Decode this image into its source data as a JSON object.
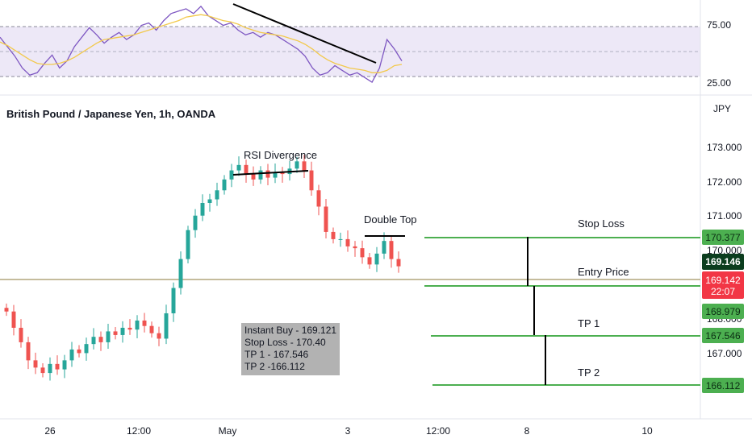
{
  "chart_data": [
    {
      "type": "line",
      "title": "",
      "yticks": [
        "75.00",
        "25.00"
      ],
      "ylim": [
        18,
        88
      ],
      "band": [
        30,
        70
      ],
      "series": [
        {
          "color": "#7e57c2",
          "values": [
            60,
            52,
            44,
            34,
            28,
            30,
            38,
            45,
            34,
            40,
            52,
            60,
            68,
            62,
            55,
            60,
            64,
            58,
            62,
            70,
            72,
            66,
            74,
            80,
            82,
            84,
            80,
            86,
            78,
            74,
            70,
            72,
            66,
            62,
            64,
            60,
            64,
            62,
            58,
            54,
            50,
            44,
            34,
            28,
            30,
            36,
            32,
            28,
            30,
            26,
            22,
            34,
            58,
            50,
            40
          ]
        },
        {
          "color": "#f2c94c",
          "values": [
            56,
            53,
            49,
            45,
            41,
            38,
            37,
            37,
            38,
            40,
            43,
            47,
            51,
            55,
            58,
            59,
            60,
            61,
            62,
            64,
            66,
            68,
            70,
            72,
            74,
            77,
            78,
            79,
            78,
            76,
            74,
            73,
            71,
            68,
            66,
            64,
            63,
            62,
            61,
            59,
            57,
            54,
            50,
            45,
            41,
            38,
            36,
            34,
            33,
            32,
            30,
            30,
            32,
            36,
            37
          ]
        }
      ]
    },
    {
      "type": "line",
      "title": "British Pound / Japanese Yen, 1h, OANDA",
      "currency": "JPY",
      "ylim": [
        165.25,
        173.8
      ],
      "yticks": [
        "173.000",
        "172.000",
        "171.000",
        "170.000",
        "168.000",
        "167.000"
      ],
      "xticks": [
        "26",
        "12:00",
        "May",
        "3",
        "12:00",
        "8",
        "10"
      ],
      "close": [
        167.95,
        167.5,
        167.1,
        166.6,
        166.4,
        166.25,
        166.5,
        166.35,
        166.6,
        166.9,
        166.8,
        167.05,
        167.25,
        167.1,
        167.4,
        167.3,
        167.5,
        167.45,
        167.7,
        167.55,
        167.35,
        167.2,
        167.9,
        168.6,
        169.4,
        170.2,
        170.6,
        170.95,
        171.05,
        171.3,
        171.6,
        171.85,
        172.0,
        171.75,
        171.6,
        171.85,
        171.65,
        171.8,
        171.75,
        171.9,
        172.1,
        171.85,
        171.3,
        170.85,
        170.15,
        169.95,
        169.95,
        169.75,
        169.7,
        169.45,
        169.25,
        169.55,
        169.9,
        169.4,
        169.2
      ]
    }
  ],
  "annotations": {
    "rsi_divergence": "RSI Divergence",
    "double_top": "Double Top",
    "stop_loss": "Stop Loss",
    "entry_price": "Entry Price",
    "tp1": "TP 1",
    "tp2": "TP 2"
  },
  "levels": {
    "stop_loss": "170.377",
    "entry": "168.979",
    "tp1": "167.546",
    "tp2": "166.112"
  },
  "price_badges": {
    "last": "169.146",
    "current": "169.142",
    "countdown": "22:07"
  },
  "trade_note": {
    "line1": "Instant Buy - 169.121",
    "line2": "Stop Loss - 170.40",
    "line3": "TP 1 - 167.546",
    "line4": "TP 2 -166.112"
  },
  "colors": {
    "rsi": "#7e57c2",
    "rsi_ma": "#f2c94c",
    "band": "#ede8f7",
    "up": "#26a69a",
    "down": "#ef5350",
    "level": "#4caf50",
    "last_badge": "#0b3d1e",
    "current_badge": "#f23645"
  }
}
